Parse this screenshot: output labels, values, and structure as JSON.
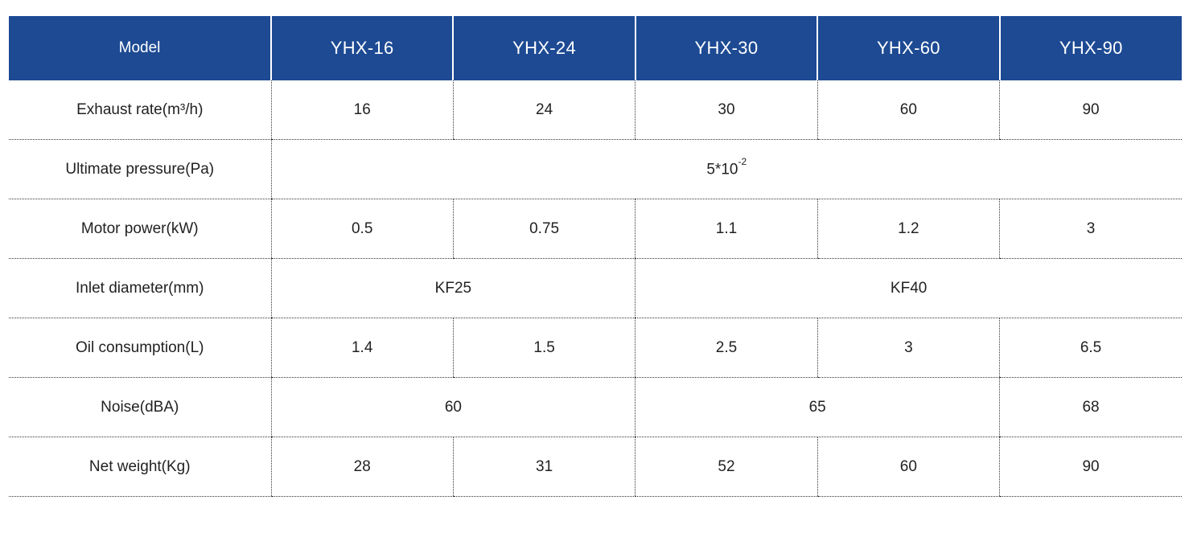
{
  "header": {
    "label": "Model",
    "models": [
      "YHX-16",
      "YHX-24",
      "YHX-30",
      "YHX-60",
      "YHX-90"
    ]
  },
  "rows": {
    "exhaust_rate": {
      "label": "Exhaust rate(m³/h)",
      "values": [
        "16",
        "24",
        "30",
        "60",
        "90"
      ]
    },
    "ultimate_pressure": {
      "label": "Ultimate pressure(Pa)",
      "base": "5*10",
      "exponent": "-2"
    },
    "motor_power": {
      "label": "Motor power(kW)",
      "values": [
        "0.5",
        "0.75",
        "1.1",
        "1.2",
        "3"
      ]
    },
    "inlet_diameter": {
      "label": "Inlet diameter(mm)",
      "values": [
        "KF25",
        "KF40"
      ]
    },
    "oil_consumption": {
      "label": "Oil consumption(L)",
      "values": [
        "1.4",
        "1.5",
        "2.5",
        "3",
        "6.5"
      ]
    },
    "noise": {
      "label": "Noise(dBA)",
      "values": [
        "60",
        "65",
        "68"
      ]
    },
    "net_weight": {
      "label": "Net weight(Kg)",
      "values": [
        "28",
        "31",
        "52",
        "60",
        "90"
      ]
    }
  }
}
